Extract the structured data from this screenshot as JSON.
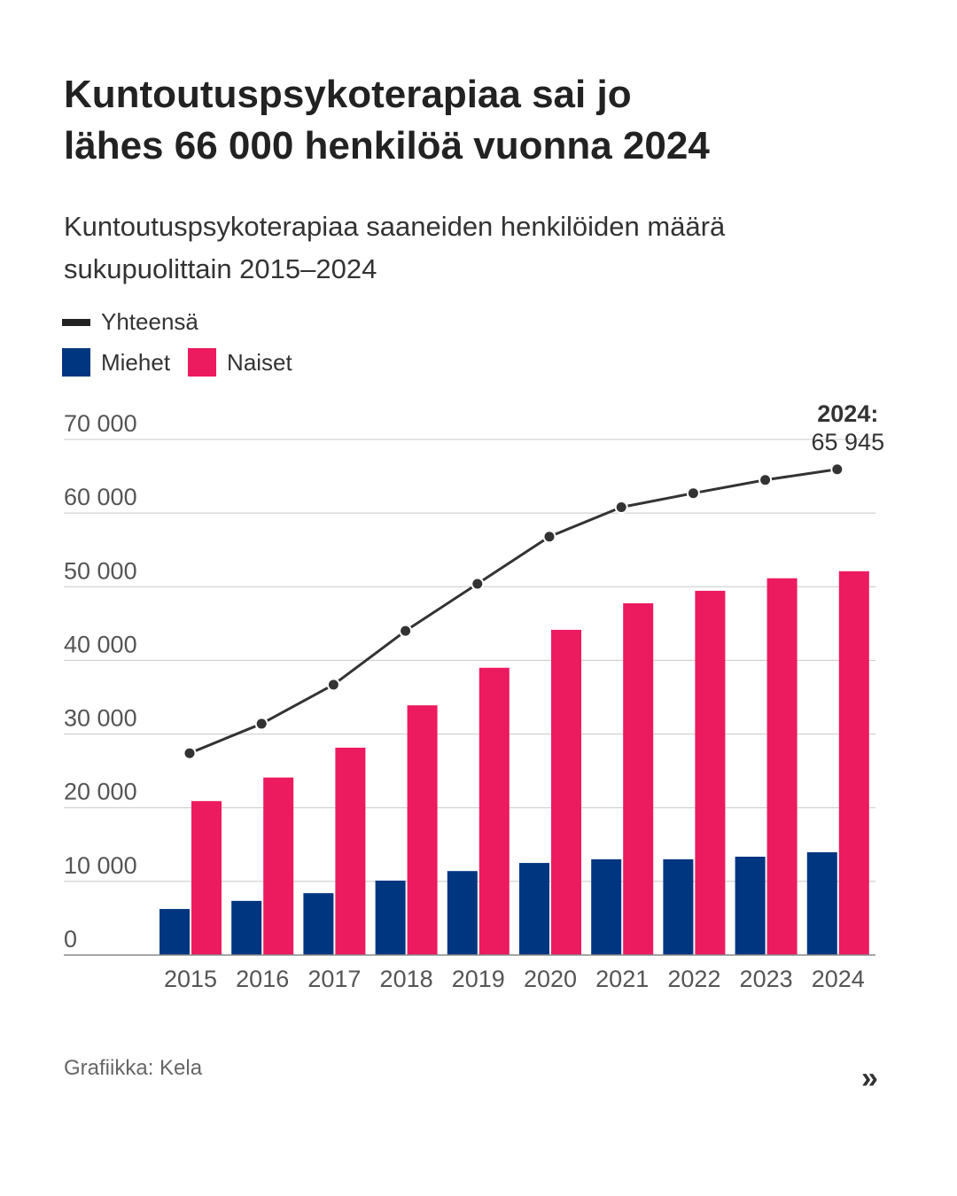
{
  "header": {
    "title_line1": "Kuntoutuspsykoterapiaa sai jo",
    "title_line2": "lähes 66 000 henkilöä vuonna 2024",
    "subtitle_line1": "Kuntoutuspsykoterapiaa saaneiden henkilöiden määrä",
    "subtitle_line2": "sukupuolittain 2015–2024"
  },
  "legend": {
    "total": "Yhteensä",
    "men": "Miehet",
    "women": "Naiset"
  },
  "colors": {
    "total": "#333333",
    "men": "#003580",
    "women": "#ec1a5e",
    "grid": "#c8c8c8",
    "axis": "#888888",
    "tick_text": "#555555"
  },
  "chart_data": {
    "type": "bar",
    "title": "Kuntoutuspsykoterapiaa saaneiden henkilöiden määrä sukupuolittain 2015–2024",
    "categories": [
      "2015",
      "2016",
      "2017",
      "2018",
      "2019",
      "2020",
      "2021",
      "2022",
      "2023",
      "2024"
    ],
    "series": [
      {
        "name": "Miehet",
        "kind": "bar",
        "values": [
          6250,
          7350,
          8400,
          10100,
          11400,
          12500,
          13000,
          13000,
          13350,
          13950
        ]
      },
      {
        "name": "Naiset",
        "kind": "bar",
        "values": [
          20900,
          24100,
          28150,
          33900,
          39000,
          44150,
          47750,
          49450,
          51150,
          52100
        ]
      },
      {
        "name": "Yhteensä",
        "kind": "line",
        "values": [
          27400,
          31400,
          36700,
          44000,
          50400,
          56800,
          60800,
          62700,
          64500,
          65945
        ]
      }
    ],
    "ylim": [
      0,
      70000
    ],
    "yticks": [
      0,
      10000,
      20000,
      30000,
      40000,
      50000,
      60000,
      70000
    ],
    "ytick_labels": [
      "0",
      "10 000",
      "20 000",
      "30 000",
      "40 000",
      "50 000",
      "60 000",
      "70 000"
    ],
    "xlabel": "",
    "ylabel": "",
    "grid": true,
    "legend_position": "top-left",
    "annotation": {
      "label": "2024:",
      "value": "65 945",
      "category": "2024",
      "series": "Yhteensä"
    }
  },
  "footer": {
    "credit": "Grafiikka: Kela",
    "more_icon": "double-chevron-right-icon",
    "more_glyph": "»"
  }
}
